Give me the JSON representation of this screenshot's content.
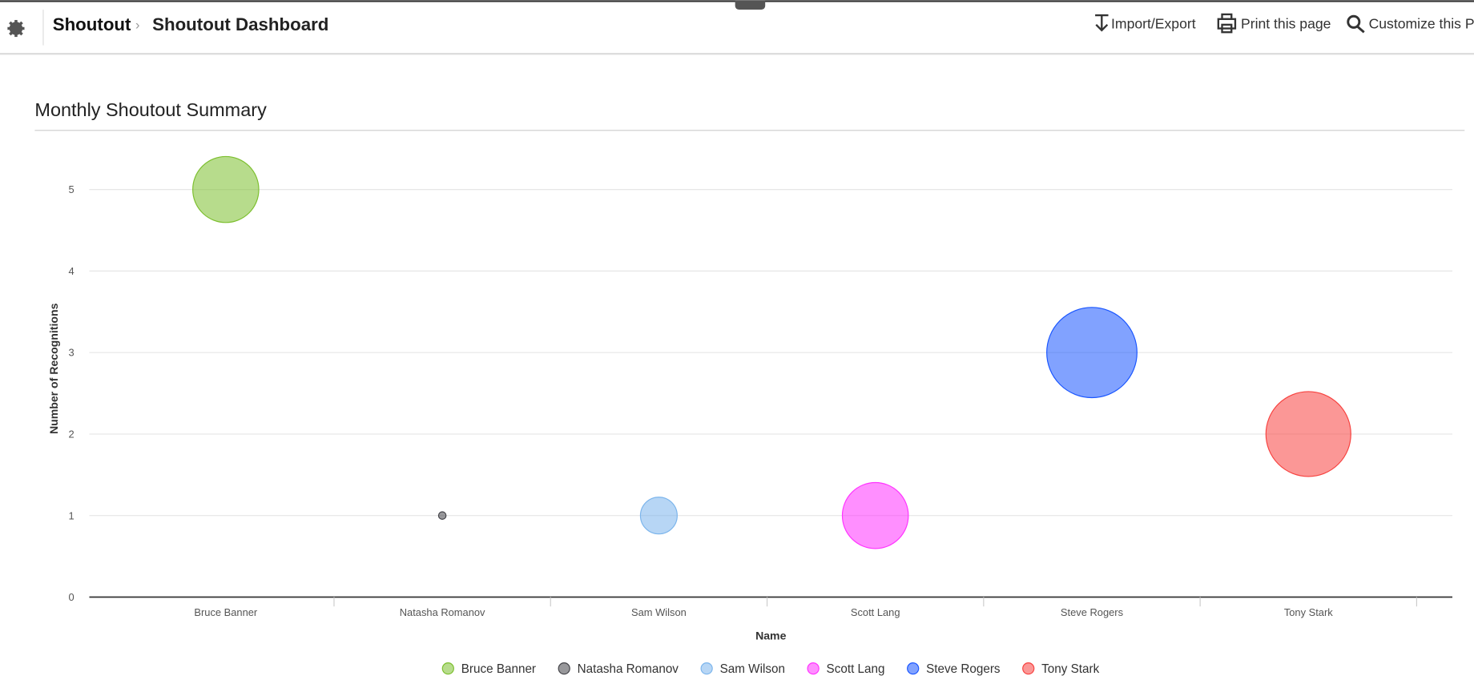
{
  "header": {
    "app": "Shoutout",
    "page": "Shoutout Dashboard",
    "actions": [
      "Import/Export",
      "Print this page",
      "Customize this Pa"
    ]
  },
  "chart_data": {
    "type": "bubble",
    "title": "Monthly Shoutout Summary",
    "x_label": "Name",
    "y_label": "Number of Recognitions",
    "categories": [
      "Bruce Banner",
      "Natasha Romanov",
      "Sam Wilson",
      "Scott Lang",
      "Steve Rogers",
      "Tony Stark"
    ],
    "values": [
      5,
      1,
      1,
      1,
      3,
      2
    ],
    "sizes": [
      5,
      1,
      2,
      5,
      9,
      8
    ],
    "colors": [
      "#7cbf2e",
      "#434348",
      "#7cb5ec",
      "#ff33ff",
      "#1a56ff",
      "#f7423f"
    ],
    "ylim": [
      0,
      5.5
    ],
    "yticks": [
      0,
      1,
      2,
      3,
      4,
      5
    ],
    "grid": true,
    "legend": "bottom"
  }
}
